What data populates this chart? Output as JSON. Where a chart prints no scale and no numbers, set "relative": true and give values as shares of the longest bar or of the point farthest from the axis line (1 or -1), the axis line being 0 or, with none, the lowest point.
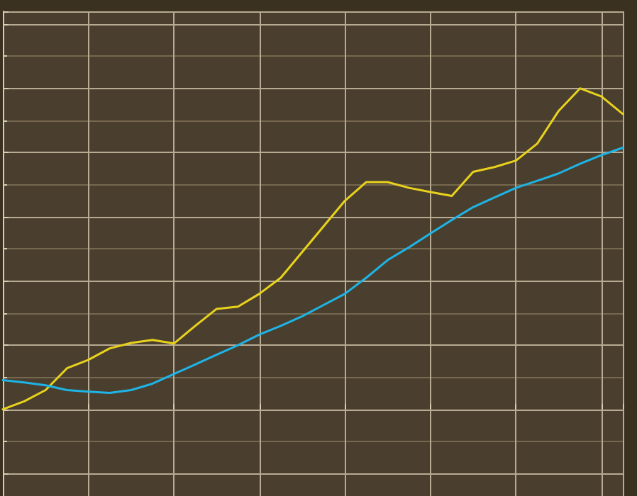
{
  "chart_data": {
    "type": "line",
    "relative": true,
    "grid": true,
    "tick_labels": false,
    "marker": "none",
    "line_style": "solid",
    "categories": [
      null,
      null,
      null,
      null,
      null,
      null,
      null,
      null,
      null,
      null,
      null,
      null,
      null,
      null,
      null,
      null,
      null,
      null,
      null,
      null,
      null,
      null,
      null,
      null,
      null,
      null,
      null,
      null,
      null,
      null
    ],
    "series": [
      {
        "color": "#e8d21d",
        "values": [
          0,
          0.025,
          0.06,
          0.128,
          0.154,
          0.19,
          0.207,
          0.216,
          0.205,
          0.26,
          0.313,
          0.32,
          0.36,
          0.41,
          0.49,
          0.57,
          0.65,
          0.708,
          0.708,
          0.69,
          0.677,
          0.665,
          0.74,
          0.755,
          0.775,
          0.828,
          0.93,
          1,
          0.975,
          0.92
        ]
      },
      {
        "color": "#1eb4e6",
        "values": [
          0.091,
          0.084,
          0.075,
          0.06,
          0.055,
          0.051,
          0.06,
          0.08,
          0.11,
          0.14,
          0.17,
          0.2,
          0.233,
          0.26,
          0.29,
          0.325,
          0.36,
          0.41,
          0.465,
          0.505,
          0.548,
          0.59,
          0.63,
          0.66,
          0.69,
          0.712,
          0.735,
          0.765,
          0.792,
          0.815
        ]
      }
    ]
  }
}
